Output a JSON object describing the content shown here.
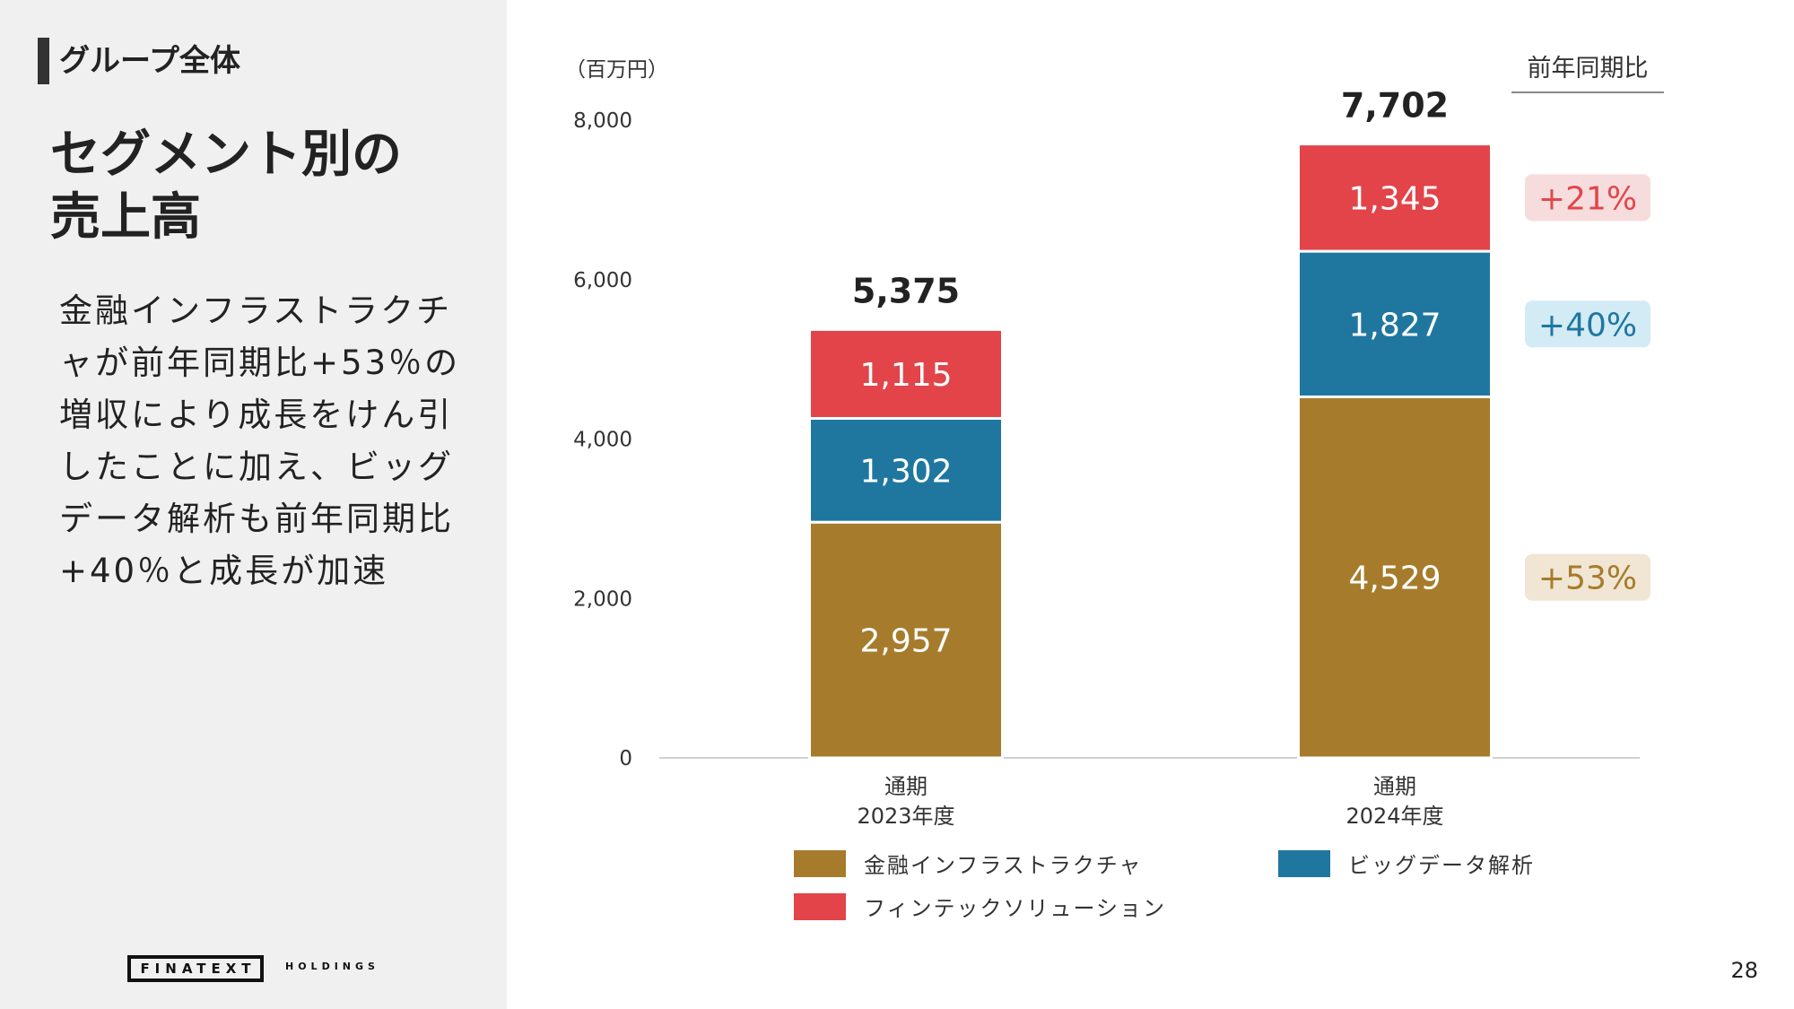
{
  "section": {
    "title": "グループ全体"
  },
  "title": {
    "line1": "セグメント別の",
    "line2": "売上高"
  },
  "body": {
    "lines": [
      "金融インフラストラクチ",
      "ャが前年同期比+53％の",
      "増収により成長をけん引",
      "したことに加え、ビッグ",
      "データ解析も前年同期比",
      "+40％と成長が加速"
    ]
  },
  "logo": {
    "name": "FINATEXT",
    "sub": "HOLDINGS"
  },
  "page_number": "28",
  "chart_data": {
    "type": "bar",
    "stacked": true,
    "unit_label": "（百万円）",
    "yoy_header": "前年同期比",
    "ylim": [
      0,
      8000
    ],
    "yticks": [
      0,
      2000,
      4000,
      6000,
      8000
    ],
    "ytick_labels": [
      "0",
      "2,000",
      "4,000",
      "6,000",
      "8,000"
    ],
    "categories": [
      [
        "通期",
        "2023年度"
      ],
      [
        "通期",
        "2024年度"
      ]
    ],
    "series": [
      {
        "name": "金融インフラストラクチャ",
        "color": "#a67c2c",
        "values": [
          2957,
          4529
        ],
        "labels": [
          "2,957",
          "4,529"
        ]
      },
      {
        "name": "ビッグデータ解析",
        "color": "#1f77a0",
        "values": [
          1302,
          1827
        ],
        "labels": [
          "1,302",
          "1,827"
        ]
      },
      {
        "name": "フィンテックソリューション",
        "color": "#e2444a",
        "values": [
          1115,
          1345
        ],
        "labels": [
          "1,115",
          "1,345"
        ]
      }
    ],
    "totals": [
      "5,375",
      "7,702"
    ],
    "yoy": [
      {
        "series": "フィンテックソリューション",
        "label": "+21%",
        "color": "#e0474c",
        "bg": "#f7dcdd"
      },
      {
        "series": "ビッグデータ解析",
        "label": "+40%",
        "color": "#1f77a0",
        "bg": "#d3ebf5"
      },
      {
        "series": "金融インフラストラクチャ",
        "label": "+53%",
        "color": "#a67c2c",
        "bg": "#f0e6d3"
      }
    ],
    "legend_position": "bottom"
  }
}
